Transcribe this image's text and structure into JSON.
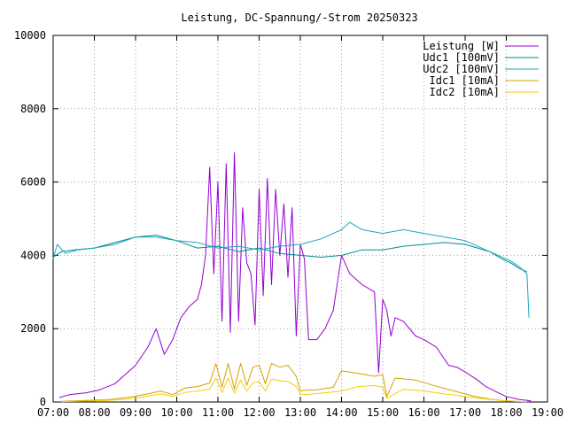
{
  "chart_data": {
    "type": "line",
    "title": "Leistung, DC-Spannung/-Strom 20250323",
    "xlabel": "",
    "ylabel": "",
    "x_range_hours": [
      7,
      19
    ],
    "ylim": [
      0,
      10000
    ],
    "x_tick_labels": [
      "07:00",
      "08:00",
      "09:00",
      "10:00",
      "11:00",
      "12:00",
      "13:00",
      "14:00",
      "15:00",
      "16:00",
      "17:00",
      "18:00",
      "19:00"
    ],
    "y_tick_labels": [
      "0",
      "2000",
      "4000",
      "6000",
      "8000",
      "10000"
    ],
    "grid": true,
    "legend_position": "top-right",
    "series": [
      {
        "name": "Leistung [W]",
        "color": "#9400d3",
        "x": [
          7.15,
          7.4,
          7.8,
          8.1,
          8.5,
          9.0,
          9.3,
          9.5,
          9.7,
          9.9,
          10.1,
          10.3,
          10.5,
          10.6,
          10.7,
          10.8,
          10.9,
          11.0,
          11.1,
          11.2,
          11.3,
          11.4,
          11.5,
          11.6,
          11.7,
          11.8,
          11.9,
          12.0,
          12.1,
          12.2,
          12.3,
          12.4,
          12.5,
          12.6,
          12.7,
          12.8,
          12.9,
          13.0,
          13.1,
          13.2,
          13.4,
          13.6,
          13.8,
          14.0,
          14.2,
          14.5,
          14.8,
          14.9,
          15.0,
          15.1,
          15.2,
          15.3,
          15.5,
          15.8,
          16.0,
          16.3,
          16.6,
          16.8,
          17.0,
          17.3,
          17.5,
          17.8,
          18.0,
          18.3,
          18.6
        ],
        "y": [
          120,
          200,
          250,
          320,
          500,
          1000,
          1500,
          2000,
          1300,
          1700,
          2300,
          2600,
          2800,
          3200,
          4000,
          6400,
          3500,
          6000,
          2200,
          6500,
          1900,
          6800,
          2200,
          5300,
          3800,
          3500,
          2100,
          5800,
          2900,
          6100,
          3200,
          5800,
          4000,
          5400,
          3400,
          5300,
          1800,
          4300,
          3900,
          1700,
          1700,
          2000,
          2500,
          4000,
          3500,
          3200,
          3000,
          800,
          2800,
          2500,
          1800,
          2300,
          2200,
          1800,
          1700,
          1500,
          1000,
          950,
          820,
          600,
          420,
          250,
          150,
          70,
          30
        ]
      },
      {
        "name": "Udc1 [100mV]",
        "color": "#008b8b",
        "x": [
          7.0,
          7.2,
          7.5,
          8.0,
          8.5,
          9.0,
          9.5,
          10.0,
          10.5,
          11.0,
          11.5,
          12.0,
          12.5,
          13.0,
          13.5,
          14.0,
          14.5,
          15.0,
          15.5,
          16.0,
          16.5,
          17.0,
          17.3,
          17.6,
          17.9,
          18.1,
          18.3,
          18.5
        ],
        "y": [
          3950,
          4100,
          4150,
          4200,
          4350,
          4500,
          4550,
          4400,
          4200,
          4250,
          4100,
          4200,
          4050,
          4000,
          3950,
          4000,
          4150,
          4150,
          4250,
          4300,
          4350,
          4300,
          4200,
          4100,
          3900,
          3800,
          3650,
          3550
        ]
      },
      {
        "name": "Udc2 [100mV]",
        "color": "#1aa7c0",
        "x": [
          7.0,
          7.1,
          7.3,
          7.6,
          8.0,
          8.5,
          9.0,
          9.5,
          10.0,
          10.5,
          11.0,
          11.5,
          12.0,
          12.5,
          13.0,
          13.5,
          14.0,
          14.2,
          14.5,
          15.0,
          15.5,
          16.0,
          16.5,
          17.0,
          17.3,
          17.6,
          17.9,
          18.1,
          18.3,
          18.5,
          18.55
        ],
        "y": [
          3900,
          4300,
          4050,
          4150,
          4200,
          4300,
          4500,
          4500,
          4400,
          4350,
          4200,
          4250,
          4150,
          4250,
          4300,
          4450,
          4700,
          4900,
          4700,
          4600,
          4700,
          4600,
          4500,
          4400,
          4250,
          4100,
          3950,
          3850,
          3700,
          3500,
          2300
        ]
      },
      {
        "name": "Idc1 [10mA]",
        "color": "#d4a000",
        "x": [
          7.2,
          7.8,
          8.3,
          8.8,
          9.3,
          9.6,
          9.9,
          10.2,
          10.5,
          10.8,
          10.95,
          11.1,
          11.25,
          11.4,
          11.55,
          11.7,
          11.85,
          12.0,
          12.15,
          12.3,
          12.5,
          12.7,
          12.9,
          13.0,
          13.1,
          13.4,
          13.8,
          14.0,
          14.3,
          14.8,
          15.0,
          15.1,
          15.3,
          15.8,
          16.3,
          16.8,
          17.2,
          17.6,
          18.0,
          18.4
        ],
        "y": [
          20,
          40,
          60,
          120,
          220,
          300,
          200,
          380,
          420,
          520,
          1050,
          400,
          1050,
          350,
          1050,
          450,
          950,
          1000,
          500,
          1050,
          950,
          1000,
          700,
          300,
          320,
          330,
          400,
          850,
          800,
          700,
          750,
          150,
          650,
          600,
          430,
          280,
          160,
          80,
          30,
          10
        ]
      },
      {
        "name": "Idc2 [10mA]",
        "color": "#f0d000",
        "x": [
          7.2,
          7.8,
          8.3,
          8.8,
          9.3,
          9.6,
          9.9,
          10.2,
          10.5,
          10.8,
          10.95,
          11.1,
          11.25,
          11.4,
          11.55,
          11.7,
          11.85,
          12.0,
          12.15,
          12.3,
          12.5,
          12.7,
          12.9,
          13.0,
          13.2,
          13.6,
          14.0,
          14.4,
          14.8,
          15.0,
          15.1,
          15.5,
          16.0,
          16.5,
          17.0,
          17.4,
          17.8,
          18.2,
          18.5
        ],
        "y": [
          10,
          25,
          40,
          80,
          160,
          220,
          150,
          260,
          300,
          350,
          650,
          260,
          650,
          240,
          600,
          300,
          520,
          560,
          300,
          620,
          580,
          560,
          420,
          200,
          210,
          250,
          300,
          420,
          450,
          400,
          100,
          350,
          300,
          220,
          150,
          90,
          50,
          20,
          5
        ]
      }
    ]
  }
}
